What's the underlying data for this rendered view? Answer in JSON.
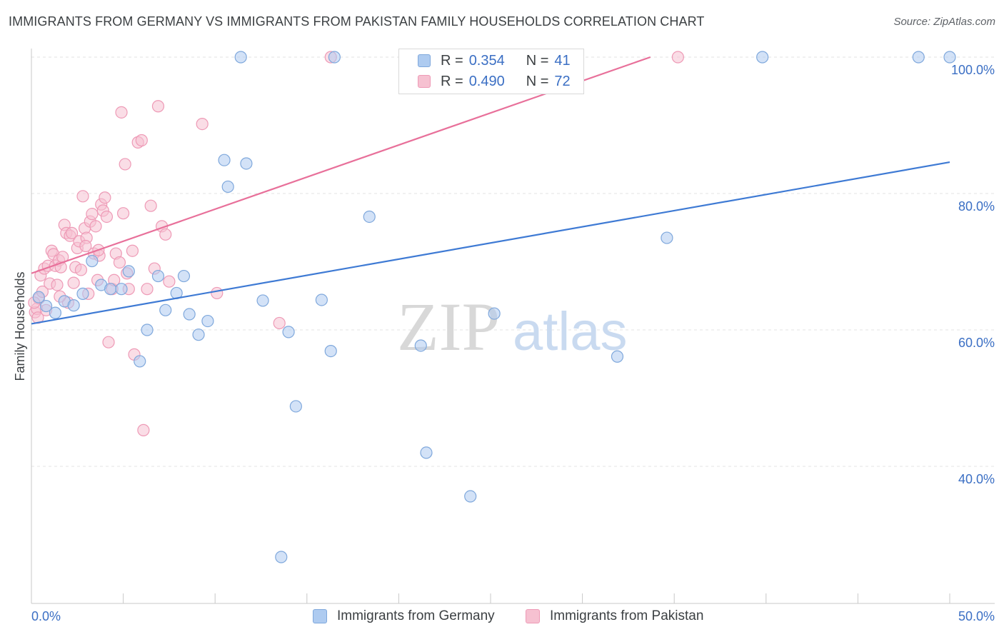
{
  "title": "IMMIGRANTS FROM GERMANY VS IMMIGRANTS FROM PAKISTAN FAMILY HOUSEHOLDS CORRELATION CHART",
  "source": "Source: ZipAtlas.com",
  "watermark": {
    "zip": "ZIP",
    "atlas": "atlas"
  },
  "colors": {
    "germany_fill": "#aecbf0",
    "germany_stroke": "#7fa8dc",
    "germany_line": "#3e7ad4",
    "pakistan_fill": "#f6c1d1",
    "pakistan_stroke": "#ee9ab6",
    "pakistan_line": "#e8709a",
    "grid": "#e3e3e3",
    "axis_text": "#3b6fc4"
  },
  "legend": {
    "germany": {
      "r_label": "R =",
      "r_value": "0.354",
      "n_label": "N =",
      "n_value": "41"
    },
    "pakistan": {
      "r_label": "R =",
      "r_value": "0.490",
      "n_label": "N =",
      "n_value": "72"
    }
  },
  "bottom_legend": {
    "germany": "Immigrants from Germany",
    "pakistan": "Immigrants from Pakistan"
  },
  "chart_data": {
    "type": "scatter",
    "title": "IMMIGRANTS FROM GERMANY VS IMMIGRANTS FROM PAKISTAN FAMILY HOUSEHOLDS CORRELATION CHART",
    "xlabel": "",
    "ylabel": "Family Households",
    "xlim": [
      0,
      50
    ],
    "ylim": [
      20,
      102
    ],
    "x_tick_labels": {
      "left": "0.0%",
      "right": "50.0%"
    },
    "y_ticks": [
      40,
      60,
      80,
      100
    ],
    "y_tick_labels": [
      "40.0%",
      "60.0%",
      "80.0%",
      "100.0%"
    ],
    "series": [
      {
        "name": "Immigrants from Germany",
        "r": 0.354,
        "n": 41,
        "trend": {
          "x": [
            0,
            50
          ],
          "y": [
            60.9,
            84.6
          ]
        },
        "points": [
          [
            0.4,
            64.8
          ],
          [
            0.8,
            63.5
          ],
          [
            1.3,
            62.5
          ],
          [
            1.8,
            64.2
          ],
          [
            2.3,
            63.6
          ],
          [
            2.8,
            65.3
          ],
          [
            3.3,
            70.1
          ],
          [
            3.8,
            66.6
          ],
          [
            4.3,
            66.0
          ],
          [
            4.9,
            66.0
          ],
          [
            5.3,
            68.6
          ],
          [
            5.9,
            55.4
          ],
          [
            6.3,
            60.0
          ],
          [
            6.9,
            67.9
          ],
          [
            7.3,
            62.9
          ],
          [
            7.9,
            65.4
          ],
          [
            8.3,
            67.9
          ],
          [
            8.6,
            62.3
          ],
          [
            9.1,
            59.3
          ],
          [
            9.6,
            61.3
          ],
          [
            10.5,
            84.9
          ],
          [
            10.7,
            81.0
          ],
          [
            11.4,
            100.0
          ],
          [
            11.7,
            84.4
          ],
          [
            12.6,
            64.3
          ],
          [
            13.6,
            26.7
          ],
          [
            14.0,
            59.7
          ],
          [
            14.4,
            48.8
          ],
          [
            15.8,
            64.4
          ],
          [
            16.3,
            56.9
          ],
          [
            16.5,
            100.0
          ],
          [
            18.4,
            76.6
          ],
          [
            21.2,
            57.7
          ],
          [
            21.5,
            42.0
          ],
          [
            23.9,
            35.6
          ],
          [
            25.2,
            62.4
          ],
          [
            31.9,
            56.1
          ],
          [
            34.6,
            73.5
          ],
          [
            39.8,
            100.0
          ],
          [
            48.3,
            100.0
          ],
          [
            50.0,
            100.0
          ]
        ]
      },
      {
        "name": "Immigrants from Pakistan",
        "r": 0.49,
        "n": 72,
        "trend": {
          "x": [
            0,
            33.7
          ],
          "y": [
            68.3,
            100.0
          ]
        },
        "points": [
          [
            0.2,
            62.6
          ],
          [
            0.3,
            63.1
          ],
          [
            0.4,
            64.6
          ],
          [
            0.5,
            68.0
          ],
          [
            0.6,
            65.6
          ],
          [
            0.7,
            69.0
          ],
          [
            0.8,
            62.9
          ],
          [
            0.9,
            69.4
          ],
          [
            1.0,
            66.8
          ],
          [
            1.1,
            71.6
          ],
          [
            1.2,
            71.1
          ],
          [
            1.3,
            69.4
          ],
          [
            1.4,
            66.6
          ],
          [
            1.5,
            70.2
          ],
          [
            1.6,
            69.2
          ],
          [
            1.7,
            70.7
          ],
          [
            1.8,
            75.4
          ],
          [
            1.9,
            74.2
          ],
          [
            2.0,
            64.0
          ],
          [
            2.1,
            73.8
          ],
          [
            2.2,
            74.2
          ],
          [
            2.3,
            66.9
          ],
          [
            2.4,
            69.2
          ],
          [
            2.5,
            72.0
          ],
          [
            2.6,
            73.0
          ],
          [
            2.7,
            68.8
          ],
          [
            2.8,
            79.6
          ],
          [
            2.9,
            74.9
          ],
          [
            3.0,
            73.5
          ],
          [
            3.1,
            65.3
          ],
          [
            3.2,
            75.9
          ],
          [
            3.3,
            77.0
          ],
          [
            3.4,
            71.2
          ],
          [
            3.5,
            75.2
          ],
          [
            3.6,
            67.3
          ],
          [
            3.7,
            70.9
          ],
          [
            3.8,
            78.4
          ],
          [
            3.9,
            77.5
          ],
          [
            4.0,
            79.4
          ],
          [
            4.1,
            76.6
          ],
          [
            4.2,
            58.2
          ],
          [
            4.4,
            66.0
          ],
          [
            4.5,
            67.3
          ],
          [
            4.6,
            71.2
          ],
          [
            4.8,
            69.9
          ],
          [
            4.9,
            91.9
          ],
          [
            5.0,
            77.1
          ],
          [
            5.1,
            84.3
          ],
          [
            5.3,
            66.0
          ],
          [
            5.5,
            71.6
          ],
          [
            5.6,
            56.4
          ],
          [
            5.8,
            87.5
          ],
          [
            6.0,
            87.8
          ],
          [
            6.1,
            45.3
          ],
          [
            6.3,
            66.0
          ],
          [
            6.5,
            78.2
          ],
          [
            6.7,
            69.0
          ],
          [
            6.9,
            92.8
          ],
          [
            7.1,
            75.2
          ],
          [
            7.3,
            74.0
          ],
          [
            7.5,
            67.1
          ],
          [
            9.3,
            90.2
          ],
          [
            10.1,
            65.4
          ],
          [
            13.5,
            61.0
          ],
          [
            16.3,
            100.0
          ],
          [
            35.2,
            100.0
          ],
          [
            0.15,
            64.0
          ],
          [
            0.35,
            61.8
          ],
          [
            1.55,
            64.9
          ],
          [
            2.95,
            72.3
          ],
          [
            3.65,
            71.7
          ],
          [
            5.2,
            68.3
          ]
        ]
      }
    ]
  }
}
